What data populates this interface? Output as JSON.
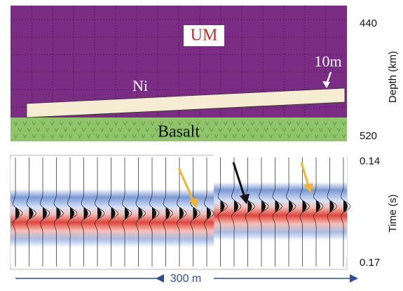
{
  "model": {
    "depth_top": "440",
    "depth_bottom": "520",
    "depth_axis": "Depth (km)",
    "layers": {
      "upper": "UM",
      "ore": "Ni",
      "thickness": "10m",
      "lower": "Basalt"
    }
  },
  "seismic": {
    "time_top": "0.14",
    "time_bottom": "0.17",
    "time_axis": "Time (s)",
    "scale": "300 m"
  }
}
